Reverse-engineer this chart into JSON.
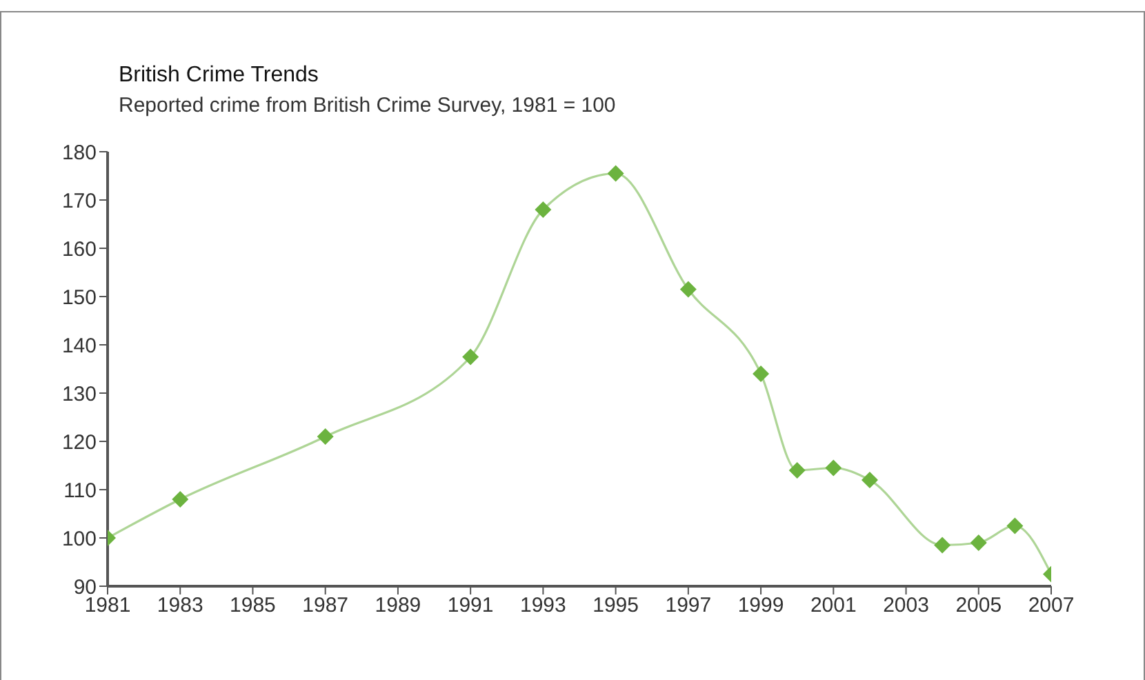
{
  "chart_data": {
    "type": "line",
    "title": "British Crime Trends",
    "subtitle": "Reported crime from British Crime Survey, 1981 = 100",
    "x": [
      1981,
      1983,
      1987,
      1991,
      1993,
      1995,
      1997,
      1999,
      2000,
      2001,
      2002,
      2004,
      2005,
      2006,
      2007
    ],
    "series": [
      {
        "color": "#6cb33f",
        "values": [
          100,
          108,
          121,
          137.5,
          168,
          175.5,
          151.5,
          134,
          114,
          114.5,
          112,
          98.5,
          99,
          102.5,
          92.5
        ]
      }
    ],
    "xlim": [
      1981,
      2007
    ],
    "xticks": [
      1981,
      1983,
      1985,
      1987,
      1989,
      1991,
      1993,
      1995,
      1997,
      1999,
      2001,
      2003,
      2005,
      2007
    ],
    "ylim": [
      90,
      180
    ],
    "yticks": [
      90,
      100,
      110,
      120,
      130,
      140,
      150,
      160,
      170,
      180
    ],
    "grid": false,
    "legend": false,
    "marker": "diamond",
    "line_style": "solid"
  }
}
